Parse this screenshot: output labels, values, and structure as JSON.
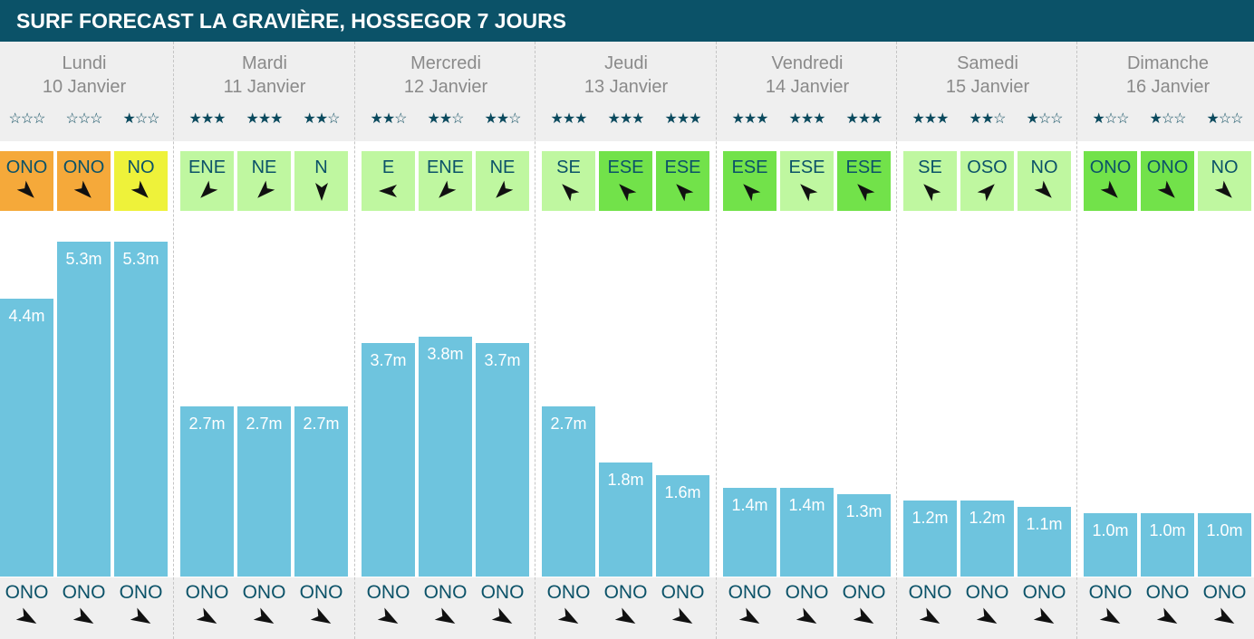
{
  "header": {
    "title": "SURF FORECAST LA GRAVIÈRE, HOSSEGOR 7 JOURS"
  },
  "colors": {
    "header_bg": "#0b5268",
    "wave_bar": "#6ec4de",
    "wind_orange": "#f5a93a",
    "wind_yellow": "#eef23a",
    "wind_light_green": "#bff7a0",
    "wind_green": "#72e24a",
    "text_teal": "#0b5268"
  },
  "days": [
    {
      "name": "Lundi",
      "date": "10 Janvier",
      "slots": [
        {
          "stars": 0,
          "wind": "ONO",
          "wind_color": "orange",
          "wind_icon": "arrow-southeast-icon",
          "height": 4.4,
          "height_label": "4.4m",
          "swell": "ONO"
        },
        {
          "stars": 0,
          "wind": "ONO",
          "wind_color": "orange",
          "wind_icon": "arrow-southeast-icon",
          "height": 5.3,
          "height_label": "5.3m",
          "swell": "ONO"
        },
        {
          "stars": 1,
          "wind": "NO",
          "wind_color": "yellow",
          "wind_icon": "arrow-southeast-icon",
          "height": 5.3,
          "height_label": "5.3m",
          "swell": "ONO"
        }
      ]
    },
    {
      "name": "Mardi",
      "date": "11 Janvier",
      "slots": [
        {
          "stars": 3,
          "wind": "ENE",
          "wind_color": "light_green",
          "wind_icon": "arrow-southwest-icon",
          "height": 2.7,
          "height_label": "2.7m",
          "swell": "ONO"
        },
        {
          "stars": 3,
          "wind": "NE",
          "wind_color": "light_green",
          "wind_icon": "arrow-southwest-icon",
          "height": 2.7,
          "height_label": "2.7m",
          "swell": "ONO"
        },
        {
          "stars": 2,
          "wind": "N",
          "wind_color": "light_green",
          "wind_icon": "arrow-south-icon",
          "height": 2.7,
          "height_label": "2.7m",
          "swell": "ONO"
        }
      ]
    },
    {
      "name": "Mercredi",
      "date": "12 Janvier",
      "slots": [
        {
          "stars": 2,
          "wind": "E",
          "wind_color": "light_green",
          "wind_icon": "arrow-west-icon",
          "height": 3.7,
          "height_label": "3.7m",
          "swell": "ONO"
        },
        {
          "stars": 2,
          "wind": "ENE",
          "wind_color": "light_green",
          "wind_icon": "arrow-southwest-icon",
          "height": 3.8,
          "height_label": "3.8m",
          "swell": "ONO"
        },
        {
          "stars": 2,
          "wind": "NE",
          "wind_color": "light_green",
          "wind_icon": "arrow-southwest-icon",
          "height": 3.7,
          "height_label": "3.7m",
          "swell": "ONO"
        }
      ]
    },
    {
      "name": "Jeudi",
      "date": "13 Janvier",
      "slots": [
        {
          "stars": 3,
          "wind": "SE",
          "wind_color": "light_green",
          "wind_icon": "arrow-northwest-icon",
          "height": 2.7,
          "height_label": "2.7m",
          "swell": "ONO"
        },
        {
          "stars": 3,
          "wind": "ESE",
          "wind_color": "green",
          "wind_icon": "arrow-northwest-icon",
          "height": 1.8,
          "height_label": "1.8m",
          "swell": "ONO"
        },
        {
          "stars": 3,
          "wind": "ESE",
          "wind_color": "green",
          "wind_icon": "arrow-northwest-icon",
          "height": 1.6,
          "height_label": "1.6m",
          "swell": "ONO"
        }
      ]
    },
    {
      "name": "Vendredi",
      "date": "14 Janvier",
      "slots": [
        {
          "stars": 3,
          "wind": "ESE",
          "wind_color": "green",
          "wind_icon": "arrow-northwest-icon",
          "height": 1.4,
          "height_label": "1.4m",
          "swell": "ONO"
        },
        {
          "stars": 3,
          "wind": "ESE",
          "wind_color": "light_green",
          "wind_icon": "arrow-northwest-icon",
          "height": 1.4,
          "height_label": "1.4m",
          "swell": "ONO"
        },
        {
          "stars": 3,
          "wind": "ESE",
          "wind_color": "green",
          "wind_icon": "arrow-northwest-icon",
          "height": 1.3,
          "height_label": "1.3m",
          "swell": "ONO"
        }
      ]
    },
    {
      "name": "Samedi",
      "date": "15 Janvier",
      "slots": [
        {
          "stars": 3,
          "wind": "SE",
          "wind_color": "light_green",
          "wind_icon": "arrow-northwest-icon",
          "height": 1.2,
          "height_label": "1.2m",
          "swell": "ONO"
        },
        {
          "stars": 2,
          "wind": "OSO",
          "wind_color": "light_green",
          "wind_icon": "arrow-northeast-icon",
          "height": 1.2,
          "height_label": "1.2m",
          "swell": "ONO"
        },
        {
          "stars": 1,
          "wind": "NO",
          "wind_color": "light_green",
          "wind_icon": "arrow-southeast-icon",
          "height": 1.1,
          "height_label": "1.1m",
          "swell": "ONO"
        }
      ]
    },
    {
      "name": "Dimanche",
      "date": "16 Janvier",
      "slots": [
        {
          "stars": 1,
          "wind": "ONO",
          "wind_color": "green",
          "wind_icon": "arrow-southeast-icon",
          "height": 1.0,
          "height_label": "1.0m",
          "swell": "ONO"
        },
        {
          "stars": 1,
          "wind": "ONO",
          "wind_color": "green",
          "wind_icon": "arrow-southeast-icon",
          "height": 1.0,
          "height_label": "1.0m",
          "swell": "ONO"
        },
        {
          "stars": 1,
          "wind": "NO",
          "wind_color": "light_green",
          "wind_icon": "arrow-southeast-icon",
          "height": 1.0,
          "height_label": "1.0m",
          "swell": "ONO"
        }
      ]
    }
  ]
}
